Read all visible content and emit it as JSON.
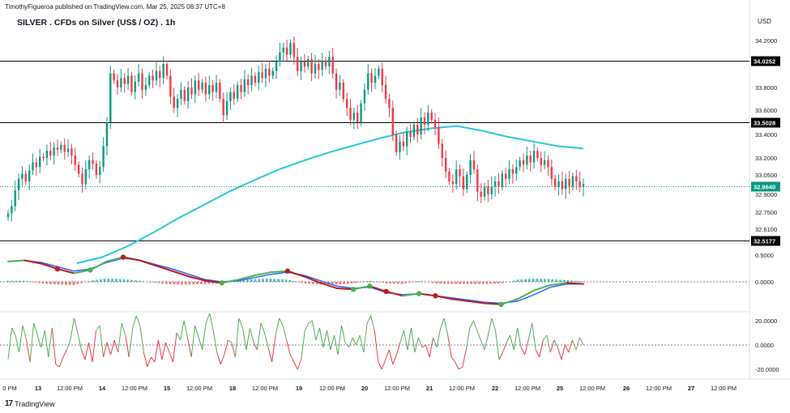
{
  "header": {
    "attribution": "TimothyFigueroa published on TradingView.com, Mar 25, 2025 08:37 UTC+8",
    "title": "SILVER . CFDs on Silver (US$ / OZ) . 1h",
    "currency": "USD",
    "brand": "TradingView",
    "brand_logo": "17"
  },
  "colors": {
    "up": "#089981",
    "down": "#f23645",
    "ma": "#26c6da",
    "level": "#000000",
    "last_price": "#089981",
    "macd": "#2962ff",
    "signal_up": "#4caf50",
    "signal_down": "#b71c1c",
    "hist_up": "#26a69a",
    "hist_down": "#ef5350",
    "osc_up": "#4caf50",
    "osc_down": "#f23645"
  },
  "chart_data": {
    "type": "candlestick",
    "price_axis": {
      "ylim": [
        32.5,
        34.3
      ],
      "ticks": [
        "34.2000",
        "33.8000",
        "33.6000",
        "33.4000",
        "33.2000",
        "33.0500",
        "32.9000",
        "32.7500",
        "32.6100"
      ],
      "tick_values": [
        34.2,
        33.8,
        33.6,
        33.4,
        33.2,
        33.05,
        32.9,
        32.75,
        32.61
      ]
    },
    "x_axis": {
      "labels": [
        "0 PM",
        "13",
        "12:00 PM",
        "14",
        "12:00 PM",
        "15",
        "12:00 PM",
        "18",
        "12:00 PM",
        "19",
        "12:00 PM",
        "20",
        "12:00 PM",
        "21",
        "12:00 PM",
        "22",
        "12:00 PM",
        "25",
        "12:00 PM",
        "26",
        "12:00 PM",
        "27",
        "12:00 PM"
      ],
      "bold": [
        false,
        true,
        false,
        true,
        false,
        true,
        false,
        true,
        false,
        true,
        false,
        true,
        false,
        true,
        false,
        true,
        false,
        true,
        false,
        true,
        false,
        true,
        false
      ]
    },
    "horizontal_levels": [
      {
        "label": "34.0252",
        "value": 34.0252
      },
      {
        "label": "33.5028",
        "value": 33.5028
      },
      {
        "label": "32.5177",
        "value": 32.5177
      }
    ],
    "last_price": {
      "label": "32.9640",
      "value": 32.964
    },
    "ohlc_close": [
      32.74,
      32.8,
      32.93,
      33.02,
      33.06,
      33.0,
      33.09,
      33.16,
      33.12,
      33.21,
      33.2,
      33.26,
      33.22,
      33.29,
      33.27,
      33.31,
      33.25,
      33.28,
      33.22,
      33.14,
      33.06,
      32.98,
      33.1,
      33.18,
      33.15,
      33.05,
      33.12,
      33.3,
      33.5,
      33.92,
      33.86,
      33.8,
      33.88,
      33.83,
      33.9,
      33.76,
      33.85,
      33.92,
      33.78,
      33.82,
      33.9,
      33.86,
      33.94,
      33.88,
      34.0,
      33.9,
      33.72,
      33.62,
      33.7,
      33.78,
      33.68,
      33.8,
      33.74,
      33.86,
      33.78,
      33.84,
      33.74,
      33.82,
      33.76,
      33.84,
      33.7,
      33.56,
      33.68,
      33.76,
      33.7,
      33.82,
      33.76,
      33.87,
      33.82,
      33.9,
      33.84,
      33.93,
      33.88,
      33.96,
      33.9,
      33.94,
      34.02,
      34.1,
      34.14,
      34.08,
      34.18,
      34.06,
      33.94,
      34.02,
      33.98,
      34.04,
      33.92,
      34.0,
      33.95,
      34.03,
      33.98,
      34.06,
      33.92,
      33.78,
      33.84,
      33.7,
      33.62,
      33.52,
      33.58,
      33.5,
      33.66,
      33.78,
      33.92,
      33.84,
      33.9,
      33.96,
      33.82,
      33.7,
      33.62,
      33.4,
      33.25,
      33.34,
      33.3,
      33.42,
      33.38,
      33.48,
      33.4,
      33.54,
      33.48,
      33.58,
      33.52,
      33.46,
      33.32,
      33.2,
      33.08,
      33.0,
      32.98,
      33.1,
      33.04,
      32.94,
      33.05,
      33.18,
      33.1,
      32.92,
      32.88,
      32.96,
      32.9,
      32.96,
      33.0,
      32.96,
      33.06,
      33.02,
      33.1,
      33.06,
      33.12,
      33.18,
      33.14,
      33.22,
      33.16,
      33.26,
      33.2,
      33.14,
      33.18,
      33.12,
      33.02,
      32.96,
      33.0,
      32.94,
      33.02,
      32.96,
      33.04,
      33.0,
      32.96,
      32.98
    ],
    "ma": [
      32.33,
      32.38,
      32.47,
      32.58,
      32.7,
      32.81,
      32.92,
      33.01,
      33.1,
      33.18,
      33.25,
      33.31,
      33.37,
      33.42,
      33.45,
      33.47,
      33.43,
      33.38,
      33.34,
      33.3,
      33.28
    ],
    "macd_axis": {
      "ticks": [
        "0.5000",
        "0.0000"
      ],
      "tick_values": [
        0.5,
        0.0
      ],
      "ylim": [
        -0.48,
        0.62
      ]
    },
    "macd": [
      0.38,
      0.4,
      0.36,
      0.28,
      0.2,
      0.24,
      0.36,
      0.44,
      0.4,
      0.32,
      0.24,
      0.14,
      0.04,
      0.0,
      0.02,
      0.08,
      0.14,
      0.18,
      0.12,
      0.02,
      -0.08,
      -0.12,
      -0.1,
      -0.2,
      -0.24,
      -0.22,
      -0.26,
      -0.3,
      -0.34,
      -0.38,
      -0.4,
      -0.36,
      -0.24,
      -0.1,
      -0.04,
      -0.04
    ],
    "signal": [
      0.38,
      0.4,
      0.34,
      0.24,
      0.16,
      0.22,
      0.38,
      0.46,
      0.4,
      0.3,
      0.2,
      0.1,
      0.02,
      -0.02,
      0.04,
      0.12,
      0.18,
      0.2,
      0.1,
      -0.02,
      -0.12,
      -0.14,
      -0.08,
      -0.18,
      -0.26,
      -0.22,
      -0.26,
      -0.32,
      -0.36,
      -0.4,
      -0.42,
      -0.32,
      -0.16,
      -0.06,
      -0.02,
      -0.04
    ],
    "histogram": [
      0.02,
      0.02,
      -0.03,
      -0.05,
      -0.06,
      0.02,
      0.06,
      0.05,
      0.02,
      -0.02,
      -0.05,
      -0.05,
      -0.04,
      -0.03,
      0.03,
      0.05,
      0.06,
      0.04,
      -0.03,
      -0.05,
      -0.05,
      -0.03,
      0.02,
      -0.03,
      -0.04,
      0.02,
      -0.03,
      -0.04,
      -0.04,
      -0.04,
      -0.03,
      0.04,
      0.06,
      0.05,
      0.03,
      0.01
    ],
    "crosses": [
      {
        "i": 3,
        "dir": "down"
      },
      {
        "i": 5,
        "dir": "up"
      },
      {
        "i": 7,
        "dir": "down"
      },
      {
        "i": 13,
        "dir": "up"
      },
      {
        "i": 17,
        "dir": "down"
      },
      {
        "i": 21,
        "dir": "up"
      },
      {
        "i": 22,
        "dir": "up"
      },
      {
        "i": 23,
        "dir": "down"
      },
      {
        "i": 25,
        "dir": "up"
      },
      {
        "i": 26,
        "dir": "down"
      },
      {
        "i": 30,
        "dir": "up"
      }
    ],
    "osc_axis": {
      "ticks": [
        "20.0000",
        "0.0000",
        "-20.0000"
      ],
      "tick_values": [
        20,
        0,
        -20
      ],
      "ylim": [
        -25,
        30
      ]
    },
    "oscillator": [
      -12,
      14,
      8,
      -6,
      16,
      4,
      -14,
      18,
      8,
      -2,
      12,
      -10,
      14,
      -16,
      -18,
      -10,
      -4,
      4,
      22,
      10,
      -4,
      -12,
      2,
      -14,
      12,
      16,
      -10,
      2,
      -8,
      4,
      -6,
      18,
      8,
      -10,
      14,
      24,
      16,
      -6,
      -18,
      -10,
      -14,
      4,
      -12,
      2,
      -6,
      -14,
      10,
      4,
      20,
      6,
      -10,
      16,
      6,
      -4,
      18,
      26,
      12,
      -6,
      -16,
      -8,
      4,
      2,
      -10,
      22,
      14,
      -4,
      14,
      2,
      -4,
      18,
      10,
      -2,
      -14,
      8,
      22,
      16,
      4,
      -8,
      -14,
      -20,
      -12,
      12,
      18,
      20,
      4,
      14,
      -2,
      12,
      -4,
      8,
      -8,
      16,
      2,
      -2,
      6,
      0,
      8,
      -6,
      18,
      24,
      12,
      -14,
      -20,
      -12,
      -4,
      -16,
      -8,
      2,
      12,
      -4,
      14,
      -6,
      6,
      -2,
      0,
      -10,
      6,
      -2,
      14,
      22,
      8,
      -10,
      -14,
      -20,
      -18,
      -4,
      14,
      20,
      12,
      4,
      -4,
      8,
      22,
      12,
      -12,
      -6,
      2,
      8,
      -4,
      14,
      -2,
      -8,
      4,
      18,
      -4,
      -10,
      4,
      8,
      -6,
      4,
      -2,
      -12,
      0,
      -6,
      4,
      -4,
      6,
      0
    ]
  }
}
